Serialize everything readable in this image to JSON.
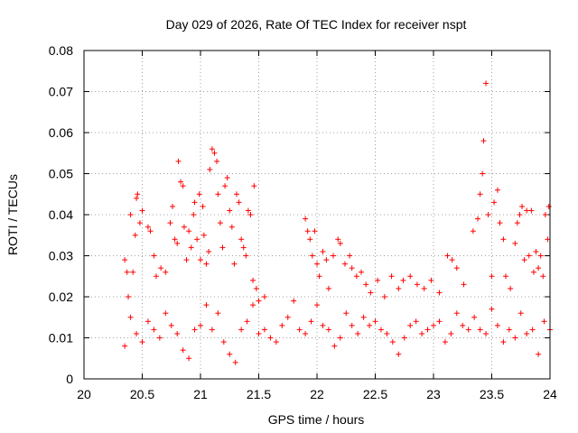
{
  "chart_data": {
    "type": "scatter",
    "title": "Day 029 of 2026, Rate Of TEC Index for receiver nspt",
    "xlabel": "GPS time / hours",
    "ylabel": "ROTI / TECUs",
    "xlim": [
      20,
      24
    ],
    "ylim": [
      0,
      0.08
    ],
    "x_ticks": [
      "20",
      "20.5",
      "21",
      "21.5",
      "22",
      "22.5",
      "23",
      "23.5",
      "24"
    ],
    "y_ticks": [
      "0",
      "0.01",
      "0.02",
      "0.03",
      "0.04",
      "0.05",
      "0.06",
      "0.07",
      "0.08"
    ],
    "grid": true,
    "marker": "+",
    "color": "#ff0000",
    "series": [
      {
        "name": "ROTI",
        "points": [
          [
            20.35,
            0.029
          ],
          [
            20.37,
            0.026
          ],
          [
            20.38,
            0.02
          ],
          [
            20.4,
            0.04
          ],
          [
            20.42,
            0.026
          ],
          [
            20.44,
            0.035
          ],
          [
            20.45,
            0.044
          ],
          [
            20.46,
            0.045
          ],
          [
            20.48,
            0.038
          ],
          [
            20.5,
            0.041
          ],
          [
            20.55,
            0.037
          ],
          [
            20.57,
            0.036
          ],
          [
            20.6,
            0.03
          ],
          [
            20.62,
            0.025
          ],
          [
            20.66,
            0.027
          ],
          [
            20.7,
            0.026
          ],
          [
            20.74,
            0.038
          ],
          [
            20.76,
            0.042
          ],
          [
            20.78,
            0.034
          ],
          [
            20.8,
            0.033
          ],
          [
            20.81,
            0.053
          ],
          [
            20.83,
            0.048
          ],
          [
            20.85,
            0.047
          ],
          [
            20.86,
            0.037
          ],
          [
            20.88,
            0.029
          ],
          [
            20.9,
            0.036
          ],
          [
            20.92,
            0.032
          ],
          [
            20.94,
            0.04
          ],
          [
            20.95,
            0.043
          ],
          [
            20.97,
            0.034
          ],
          [
            20.99,
            0.045
          ],
          [
            21.0,
            0.029
          ],
          [
            21.02,
            0.042
          ],
          [
            21.03,
            0.035
          ],
          [
            21.05,
            0.028
          ],
          [
            21.07,
            0.031
          ],
          [
            21.08,
            0.051
          ],
          [
            21.1,
            0.056
          ],
          [
            21.12,
            0.055
          ],
          [
            21.14,
            0.053
          ],
          [
            21.15,
            0.045
          ],
          [
            21.17,
            0.038
          ],
          [
            21.19,
            0.032
          ],
          [
            21.21,
            0.047
          ],
          [
            21.23,
            0.049
          ],
          [
            21.25,
            0.041
          ],
          [
            21.27,
            0.037
          ],
          [
            21.29,
            0.028
          ],
          [
            21.31,
            0.045
          ],
          [
            21.33,
            0.043
          ],
          [
            21.35,
            0.034
          ],
          [
            21.37,
            0.032
          ],
          [
            21.39,
            0.03
          ],
          [
            21.41,
            0.041
          ],
          [
            21.43,
            0.04
          ],
          [
            21.45,
            0.024
          ],
          [
            21.46,
            0.047
          ],
          [
            21.48,
            0.022
          ],
          [
            21.5,
            0.019
          ],
          [
            21.55,
            0.02
          ],
          [
            21.9,
            0.039
          ],
          [
            21.92,
            0.036
          ],
          [
            21.94,
            0.034
          ],
          [
            21.96,
            0.03
          ],
          [
            21.98,
            0.036
          ],
          [
            22.0,
            0.028
          ],
          [
            22.02,
            0.025
          ],
          [
            22.05,
            0.031
          ],
          [
            22.08,
            0.029
          ],
          [
            22.1,
            0.022
          ],
          [
            22.14,
            0.03
          ],
          [
            22.18,
            0.034
          ],
          [
            22.2,
            0.033
          ],
          [
            22.24,
            0.028
          ],
          [
            22.28,
            0.03
          ],
          [
            22.3,
            0.027
          ],
          [
            22.34,
            0.025
          ],
          [
            22.38,
            0.026
          ],
          [
            22.42,
            0.023
          ],
          [
            22.46,
            0.021
          ],
          [
            22.52,
            0.024
          ],
          [
            22.58,
            0.02
          ],
          [
            22.64,
            0.025
          ],
          [
            22.7,
            0.022
          ],
          [
            22.74,
            0.024
          ],
          [
            22.8,
            0.025
          ],
          [
            22.86,
            0.023
          ],
          [
            22.92,
            0.022
          ],
          [
            22.98,
            0.024
          ],
          [
            23.05,
            0.021
          ],
          [
            23.12,
            0.03
          ],
          [
            23.16,
            0.029
          ],
          [
            23.2,
            0.027
          ],
          [
            23.26,
            0.023
          ],
          [
            23.34,
            0.036
          ],
          [
            23.38,
            0.039
          ],
          [
            23.4,
            0.045
          ],
          [
            23.42,
            0.05
          ],
          [
            23.43,
            0.058
          ],
          [
            23.45,
            0.072
          ],
          [
            23.47,
            0.04
          ],
          [
            23.5,
            0.025
          ],
          [
            23.52,
            0.043
          ],
          [
            23.55,
            0.046
          ],
          [
            23.57,
            0.038
          ],
          [
            23.6,
            0.034
          ],
          [
            23.62,
            0.025
          ],
          [
            23.66,
            0.022
          ],
          [
            23.7,
            0.033
          ],
          [
            23.72,
            0.038
          ],
          [
            23.74,
            0.04
          ],
          [
            23.76,
            0.042
          ],
          [
            23.78,
            0.029
          ],
          [
            23.8,
            0.041
          ],
          [
            23.82,
            0.03
          ],
          [
            23.84,
            0.041
          ],
          [
            23.86,
            0.026
          ],
          [
            23.88,
            0.031
          ],
          [
            23.9,
            0.027
          ],
          [
            23.92,
            0.03
          ],
          [
            23.94,
            0.025
          ],
          [
            23.96,
            0.04
          ],
          [
            23.98,
            0.034
          ],
          [
            23.99,
            0.042
          ],
          [
            20.35,
            0.008
          ],
          [
            20.4,
            0.015
          ],
          [
            20.45,
            0.011
          ],
          [
            20.5,
            0.009
          ],
          [
            20.55,
            0.014
          ],
          [
            20.6,
            0.012
          ],
          [
            20.65,
            0.01
          ],
          [
            20.7,
            0.016
          ],
          [
            20.75,
            0.013
          ],
          [
            20.8,
            0.011
          ],
          [
            20.85,
            0.007
          ],
          [
            20.9,
            0.005
          ],
          [
            20.95,
            0.012
          ],
          [
            21.0,
            0.013
          ],
          [
            21.05,
            0.018
          ],
          [
            21.1,
            0.012
          ],
          [
            21.15,
            0.016
          ],
          [
            21.2,
            0.009
          ],
          [
            21.25,
            0.006
          ],
          [
            21.3,
            0.004
          ],
          [
            21.35,
            0.012
          ],
          [
            21.4,
            0.014
          ],
          [
            21.45,
            0.018
          ],
          [
            21.5,
            0.011
          ],
          [
            21.55,
            0.012
          ],
          [
            21.6,
            0.01
          ],
          [
            21.65,
            0.009
          ],
          [
            21.7,
            0.013
          ],
          [
            21.75,
            0.015
          ],
          [
            21.8,
            0.019
          ],
          [
            21.85,
            0.012
          ],
          [
            21.9,
            0.011
          ],
          [
            21.95,
            0.014
          ],
          [
            22.0,
            0.018
          ],
          [
            22.05,
            0.013
          ],
          [
            22.1,
            0.012
          ],
          [
            22.15,
            0.008
          ],
          [
            22.2,
            0.01
          ],
          [
            22.25,
            0.016
          ],
          [
            22.3,
            0.013
          ],
          [
            22.35,
            0.011
          ],
          [
            22.4,
            0.015
          ],
          [
            22.45,
            0.013
          ],
          [
            22.5,
            0.014
          ],
          [
            22.55,
            0.012
          ],
          [
            22.6,
            0.011
          ],
          [
            22.65,
            0.009
          ],
          [
            22.7,
            0.006
          ],
          [
            22.75,
            0.01
          ],
          [
            22.8,
            0.013
          ],
          [
            22.85,
            0.014
          ],
          [
            22.9,
            0.011
          ],
          [
            22.95,
            0.012
          ],
          [
            23.0,
            0.013
          ],
          [
            23.05,
            0.014
          ],
          [
            23.1,
            0.009
          ],
          [
            23.15,
            0.011
          ],
          [
            23.2,
            0.016
          ],
          [
            23.25,
            0.013
          ],
          [
            23.3,
            0.012
          ],
          [
            23.35,
            0.015
          ],
          [
            23.4,
            0.012
          ],
          [
            23.45,
            0.011
          ],
          [
            23.5,
            0.017
          ],
          [
            23.55,
            0.013
          ],
          [
            23.6,
            0.009
          ],
          [
            23.65,
            0.012
          ],
          [
            23.7,
            0.01
          ],
          [
            23.75,
            0.016
          ],
          [
            23.8,
            0.011
          ],
          [
            23.85,
            0.012
          ],
          [
            23.9,
            0.006
          ],
          [
            23.95,
            0.014
          ],
          [
            24.0,
            0.012
          ]
        ]
      }
    ]
  }
}
